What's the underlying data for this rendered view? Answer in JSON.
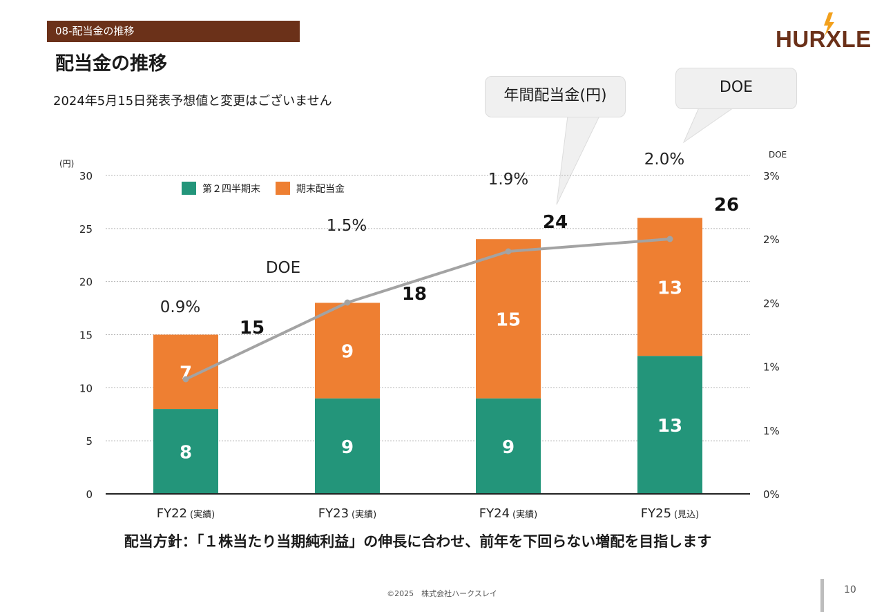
{
  "header": {
    "section_tag": "08-配当金の推移",
    "title": "配当金の推移",
    "subtitle": "2024年5月15日発表予想値と変更はございません"
  },
  "logo": {
    "text": "HURXLEY",
    "colors": {
      "text": "#6b3119",
      "accent": "#f2a01c"
    }
  },
  "callouts": {
    "annual": "年間配当金(円)",
    "doe": "DOE"
  },
  "chart_data": {
    "type": "bar",
    "stacked": true,
    "categories": [
      "FY22",
      "FY23",
      "FY24",
      "FY25"
    ],
    "category_notes": [
      "(実績)",
      "(実績)",
      "(実績)",
      "(見込)"
    ],
    "series": [
      {
        "name": "第２四半期末",
        "values": [
          8,
          9,
          9,
          13
        ],
        "color": "#23957a"
      },
      {
        "name": "期末配当金",
        "values": [
          7,
          9,
          15,
          13
        ],
        "color": "#ee7f32"
      }
    ],
    "totals": [
      15,
      18,
      24,
      26
    ],
    "line": {
      "name": "DOE",
      "values": [
        0.9,
        1.5,
        1.9,
        2.0
      ],
      "labels": [
        "0.9%",
        "1.5%",
        "1.9%",
        "2.0%"
      ],
      "color": "#a3a3a3"
    },
    "ylabel_left": "(円)",
    "ylim_left": [
      0,
      30
    ],
    "yticks_left": [
      "0",
      "5",
      "10",
      "15",
      "20",
      "25",
      "30"
    ],
    "ylabel_right": "DOE",
    "ylim_right": [
      0,
      2.5
    ],
    "yticks_right": [
      "0%",
      "1%",
      "1%",
      "2%",
      "2%",
      "3%"
    ],
    "grid": true,
    "legend_position": "top-left"
  },
  "policy": "配当方針：「１株当たり当期純利益」の伸長に合わせ、前年を下回らない増配を目指します",
  "footer": {
    "copyright": "©2025　株式会社ハークスレイ",
    "page": "10"
  }
}
